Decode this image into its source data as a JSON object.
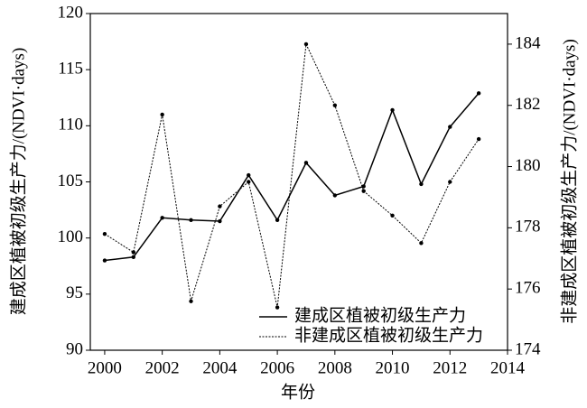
{
  "chart_data": {
    "type": "line",
    "x": [
      2000,
      2001,
      2002,
      2003,
      2004,
      2005,
      2006,
      2007,
      2008,
      2009,
      2010,
      2011,
      2012,
      2013
    ],
    "xlabel": "年份",
    "ylabel": "建成区植被初级生产力/(NDVI·days)",
    "y2label": "非建成区植被初级生产力/(NDVI·days)",
    "series": [
      {
        "name": "建成区植被初级生产力",
        "color": "#000000",
        "dash": "solid",
        "values": [
          98.0,
          98.3,
          101.8,
          101.6,
          101.5,
          105.6,
          101.6,
          106.7,
          103.8,
          104.6,
          111.4,
          104.8,
          109.9,
          112.9
        ]
      },
      {
        "name": "非建成区植被初级生产力",
        "color": "#000000",
        "dash": "dotted",
        "axis": "y2",
        "values": [
          177.8,
          177.2,
          181.7,
          175.6,
          178.7,
          179.5,
          175.4,
          184.0,
          182.0,
          179.2,
          178.4,
          177.5,
          179.5,
          180.9
        ]
      }
    ],
    "xlim": [
      1999.5,
      2014
    ],
    "xticks": [
      2000,
      2002,
      2004,
      2006,
      2008,
      2010,
      2012,
      2014
    ],
    "ylim": [
      90,
      120
    ],
    "yticks": [
      90,
      95,
      100,
      105,
      110,
      115,
      120
    ],
    "y2lim": [
      174,
      185
    ],
    "y2ticks": [
      174,
      176,
      178,
      180,
      182,
      184
    ],
    "legend": "lower right"
  }
}
